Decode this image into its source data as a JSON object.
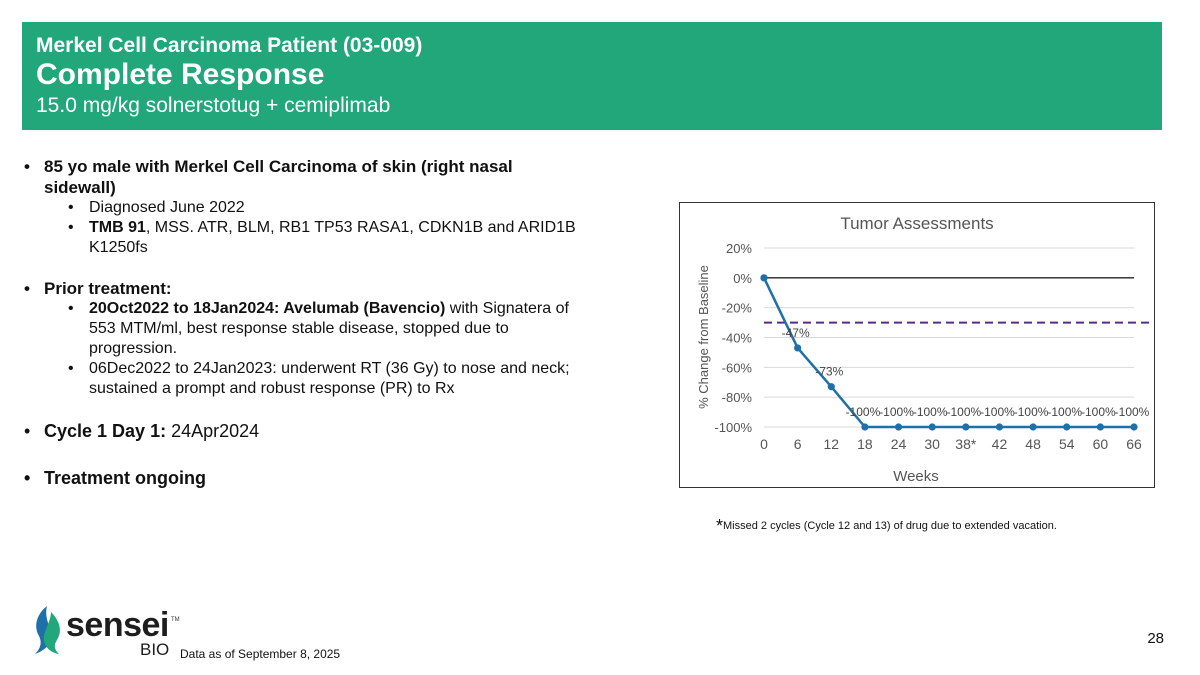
{
  "header": {
    "subtitle": "Merkel Cell Carcinoma Patient (03-009)",
    "title": "Complete Response",
    "regimen": "15.0 mg/kg solnerstotug + cemiplimab",
    "bg_color": "#21a779"
  },
  "content": {
    "patient_line1": "85 yo male with Merkel Cell Carcinoma of skin (right nasal",
    "patient_line2": "sidewall)",
    "diagnosed": "Diagnosed June 2022",
    "tmb_bold": "TMB 91",
    "tmb_rest": ", MSS. ATR, BLM, RB1 TP53 RASA1, CDKN1B and ARID1B",
    "tmb_line2": "K1250fs",
    "prior_label": "Prior treatment:",
    "prior1_bold": "20Oct2022 to 18Jan2024: Avelumab (Bavencio)",
    "prior1_rest": " with Signatera of",
    "prior1_line2": "553 MTM/ml, best response stable disease, stopped due to",
    "prior1_line3": "progression.",
    "prior2_line1": "06Dec2022 to 24Jan2023: underwent RT (36 Gy) to nose and neck;",
    "prior2_line2": "sustained a prompt and robust response (PR) to Rx",
    "cycle_label": "Cycle 1 Day 1:",
    "cycle_value": " 24Apr2024",
    "ongoing": "Treatment ongoing"
  },
  "footnote": {
    "star": "*",
    "text": "Missed 2 cycles (Cycle 12 and 13) of drug due to extended vacation."
  },
  "footer": {
    "logo_text": "sensei",
    "logo_tm": "TM",
    "logo_sub": "BIO",
    "data_date": "Data as of September 8, 2025",
    "page_number": "28"
  },
  "chart_data": {
    "type": "line",
    "title": "Tumor Assessments",
    "xlabel": "Weeks",
    "ylabel": "% Change from Baseline",
    "categories": [
      "0",
      "6",
      "12",
      "18",
      "24",
      "30",
      "38*",
      "42",
      "48",
      "54",
      "60",
      "66"
    ],
    "series": [
      {
        "name": "% Change from Baseline",
        "values": [
          0,
          -47,
          -73,
          -100,
          -100,
          -100,
          -100,
          -100,
          -100,
          -100,
          -100,
          -100
        ],
        "color": "#1f6fa8"
      }
    ],
    "data_labels": [
      "",
      "-47%",
      "-73%",
      "-100%",
      "-100%",
      "-100%",
      "-100%",
      "-100%",
      "-100%",
      "-100%",
      "-100%",
      "-100%"
    ],
    "y_ticks": [
      "20%",
      "0%",
      "-20%",
      "-40%",
      "-60%",
      "-80%",
      "-100%"
    ],
    "y_tick_values": [
      20,
      0,
      -20,
      -40,
      -60,
      -80,
      -100
    ],
    "ylim": [
      -100,
      20
    ],
    "reference_line": {
      "value": -30,
      "style": "dashed",
      "color": "#5b2a86"
    },
    "zero_line": true,
    "grid": true
  }
}
